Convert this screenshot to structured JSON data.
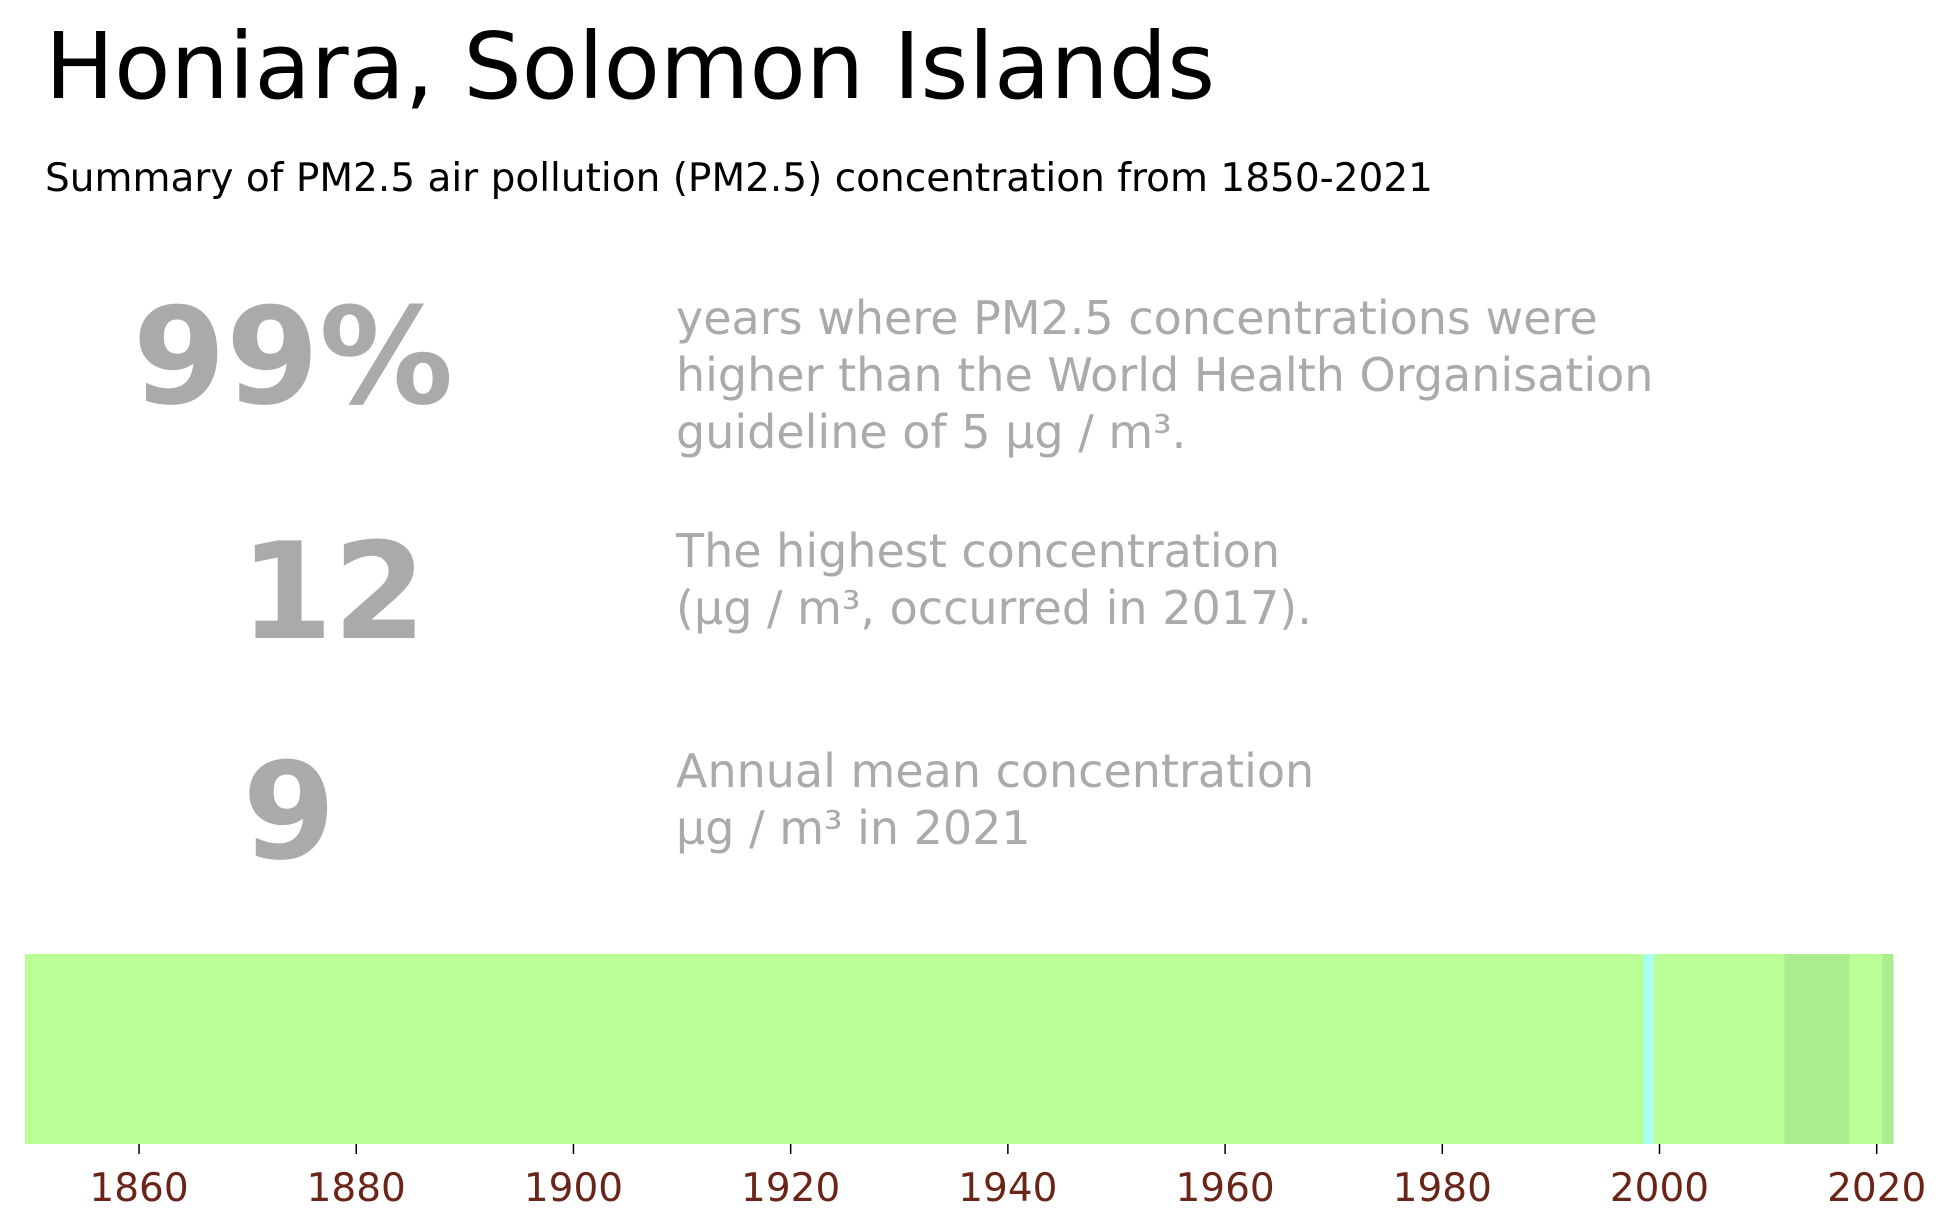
{
  "header": {
    "title": "Honiara, Solomon Islands",
    "subtitle": "Summary of PM2.5 air pollution (PM2.5) concentration from 1850-2021"
  },
  "stats": [
    {
      "value": "99%",
      "description": "years where PM2.5 concentrations were\nhigher than the World Health Organisation\nguideline of 5 µg / m³."
    },
    {
      "value": "12",
      "description": "The highest concentration\n(µg / m³, occurred in 2017)."
    },
    {
      "value": "9",
      "description": "Annual mean concentration\nµg / m³ in 2021"
    }
  ],
  "colors": {
    "stat_text": "#aaaaaa",
    "tick_text": "#6b2418",
    "base_stripe": "#bbff99",
    "low_stripe": "#aaffee",
    "high_stripe": "#aaee90"
  },
  "chart_data": {
    "type": "heatmap",
    "x_range": [
      1850,
      2021
    ],
    "ticks": [
      1860,
      1880,
      1900,
      1920,
      1940,
      1960,
      1980,
      2000,
      2020
    ],
    "tick_labels": [
      "1860",
      "1880",
      "1900",
      "1920",
      "1940",
      "1960",
      "1980",
      "2000",
      "2020"
    ],
    "stripes": [
      {
        "start": 1850,
        "end": 1998,
        "color": "#bbff99"
      },
      {
        "start": 1999,
        "end": 1999,
        "color": "#aaffee"
      },
      {
        "start": 2000,
        "end": 2011,
        "color": "#bbff99"
      },
      {
        "start": 2012,
        "end": 2017,
        "color": "#aaee90"
      },
      {
        "start": 2018,
        "end": 2020,
        "color": "#bbff99"
      },
      {
        "start": 2021,
        "end": 2021,
        "color": "#aaee90"
      }
    ]
  }
}
